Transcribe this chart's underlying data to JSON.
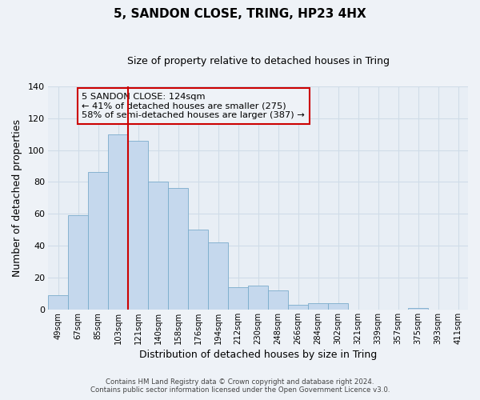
{
  "title": "5, SANDON CLOSE, TRING, HP23 4HX",
  "subtitle": "Size of property relative to detached houses in Tring",
  "xlabel": "Distribution of detached houses by size in Tring",
  "ylabel": "Number of detached properties",
  "bar_color": "#c5d8ed",
  "bar_edgecolor": "#7aaccc",
  "categories": [
    "49sqm",
    "67sqm",
    "85sqm",
    "103sqm",
    "121sqm",
    "140sqm",
    "158sqm",
    "176sqm",
    "194sqm",
    "212sqm",
    "230sqm",
    "248sqm",
    "266sqm",
    "284sqm",
    "302sqm",
    "321sqm",
    "339sqm",
    "357sqm",
    "375sqm",
    "393sqm",
    "411sqm"
  ],
  "values": [
    9,
    59,
    86,
    110,
    106,
    80,
    76,
    50,
    42,
    14,
    15,
    12,
    3,
    4,
    4,
    0,
    0,
    0,
    1,
    0,
    0
  ],
  "ylim": [
    0,
    140
  ],
  "yticks": [
    0,
    20,
    40,
    60,
    80,
    100,
    120,
    140
  ],
  "vline_color": "#cc0000",
  "vline_index": 4,
  "annotation_title": "5 SANDON CLOSE: 124sqm",
  "annotation_line1": "← 41% of detached houses are smaller (275)",
  "annotation_line2": "58% of semi-detached houses are larger (387) →",
  "annotation_box_edgecolor": "#cc0000",
  "footer1": "Contains HM Land Registry data © Crown copyright and database right 2024.",
  "footer2": "Contains public sector information licensed under the Open Government Licence v3.0.",
  "background_color": "#eef2f7",
  "grid_color": "#d0dce8",
  "plot_bg_color": "#e8eef5"
}
